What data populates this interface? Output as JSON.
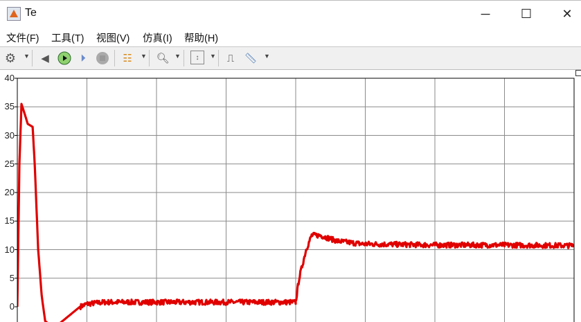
{
  "window": {
    "title": "Te",
    "minimize": "─",
    "maximize": "☐",
    "close": "✕"
  },
  "menu": [
    "文件(F)",
    "工具(T)",
    "视图(V)",
    "仿真(I)",
    "帮助(H)"
  ],
  "toolbar": {
    "icons": [
      "settings-icon",
      "step-back-icon",
      "run-icon",
      "step-forward-icon",
      "stop-icon",
      "signal-select-icon",
      "zoom-in-icon",
      "scale-axes-icon",
      "triggers-icon",
      "measurements-icon"
    ]
  },
  "colors": {
    "trace": "#e00000",
    "grid": "#8a8a8a",
    "run": "#2ea02e"
  },
  "chart_data": {
    "type": "line",
    "title": "",
    "xlabel": "",
    "ylabel": "",
    "xlim": [
      0,
      8
    ],
    "ylim": [
      -2.7,
      40
    ],
    "yticks": [
      "0",
      "5",
      "10",
      "15",
      "20",
      "25",
      "30",
      "35",
      "40"
    ],
    "xgrid_divisions": 8,
    "grid": true,
    "series": [
      {
        "color": "#e00000",
        "x": [
          0,
          0.03,
          0.06,
          0.1,
          0.15,
          0.22,
          0.25,
          0.3,
          0.35,
          0.4,
          0.45,
          0.6,
          0.75,
          0.9,
          1.0,
          1.25,
          2,
          3,
          4,
          4.0,
          4.05,
          4.15,
          4.23,
          4.35,
          4.6,
          4.95,
          5.5,
          6,
          7,
          8
        ],
        "y": [
          0,
          25,
          35.5,
          34,
          32,
          31.5,
          25,
          10,
          2,
          -2.5,
          -3,
          -3,
          -1.5,
          0,
          0.5,
          0.8,
          0.8,
          0.8,
          0.8,
          0.8,
          5,
          10,
          12.5,
          12.5,
          11.5,
          11,
          10.9,
          10.8,
          10.8,
          10.7
        ]
      }
    ]
  }
}
